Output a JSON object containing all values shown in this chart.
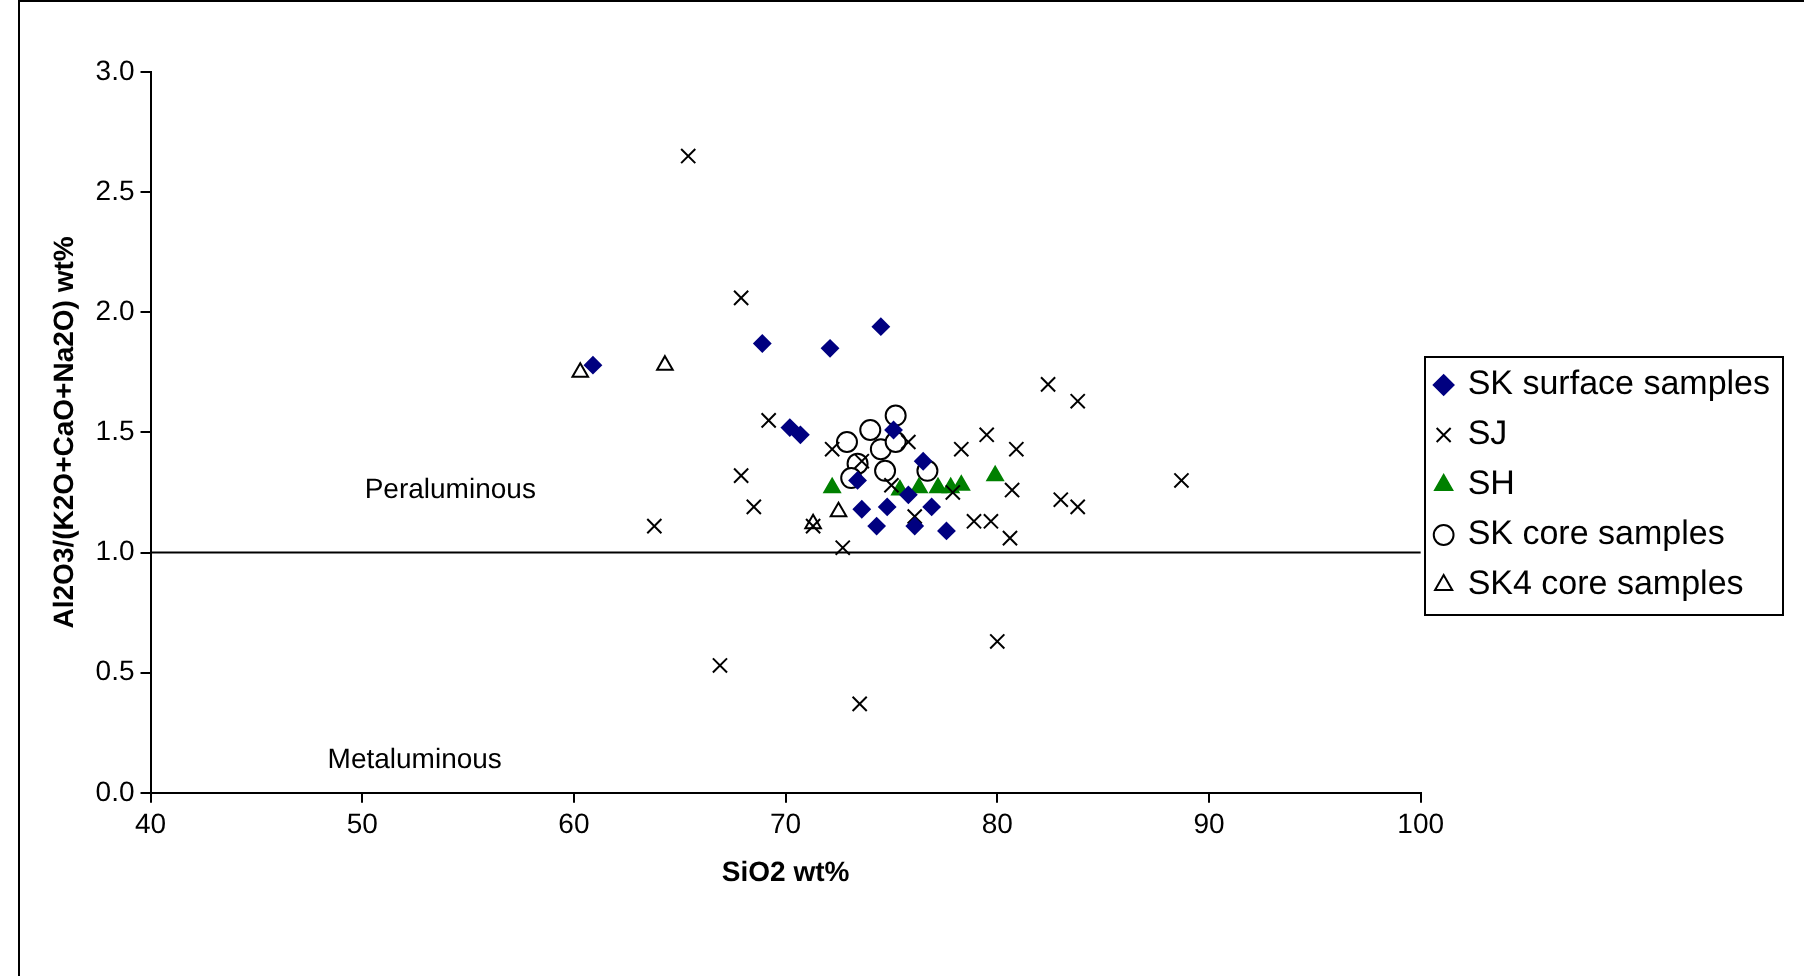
{
  "chart_data": {
    "type": "scatter",
    "xlabel": "SiO2 wt%",
    "ylabel": "Al2O3/(K2O+CaO+Na2O) wt%",
    "xlim": [
      40,
      100
    ],
    "xticks": [
      40,
      50,
      60,
      70,
      80,
      90,
      100
    ],
    "ylim": [
      0,
      3
    ],
    "yticks": [
      {
        "value": 0,
        "label": "0.0"
      },
      {
        "value": 0.5,
        "label": "0.5"
      },
      {
        "value": 1,
        "label": "1.0"
      },
      {
        "value": 1.5,
        "label": "1.5"
      },
      {
        "value": 2,
        "label": "2.0"
      },
      {
        "value": 2.5,
        "label": "2.5"
      },
      {
        "value": 3,
        "label": "3.0"
      }
    ],
    "grid": false,
    "legend": "right",
    "ref_lines": [
      {
        "axis": "y",
        "value": 1,
        "color": "#000000"
      }
    ],
    "annotations": [
      "Peraluminous",
      "Metaluminous"
    ],
    "series": [
      {
        "name": "SK surface samples",
        "color": "#000080",
        "marker": "diamond",
        "x": [
          60.9,
          68.9,
          72.1,
          74.5,
          70.2,
          70.7,
          73.4,
          73.6,
          74.3,
          74.8,
          75.1,
          76.1,
          77.6,
          76.5,
          76.9,
          75.8
        ],
        "values": [
          1.78,
          1.87,
          1.85,
          1.94,
          1.52,
          1.49,
          1.3,
          1.18,
          1.11,
          1.19,
          1.51,
          1.11,
          1.09,
          1.38,
          1.19,
          1.24
        ]
      },
      {
        "name": "SJ",
        "color": "#000000",
        "marker": "cross",
        "x": [
          65.4,
          67.9,
          69.2,
          67.9,
          68.5,
          63.8,
          72.7,
          66.9,
          73.5,
          80.0,
          82.4,
          83.8,
          88.7,
          83.0,
          83.8,
          80.6,
          80.7,
          79.5,
          80.9,
          78.3,
          78.9,
          79.7,
          72.2,
          75.8,
          76.1,
          71.3,
          77.9,
          75.0,
          73.6
        ],
        "values": [
          2.65,
          2.06,
          1.55,
          1.32,
          1.19,
          1.11,
          1.02,
          0.53,
          0.37,
          0.63,
          1.7,
          1.63,
          1.3,
          1.22,
          1.19,
          1.06,
          1.26,
          1.49,
          1.43,
          1.43,
          1.13,
          1.13,
          1.43,
          1.46,
          1.15,
          1.11,
          1.25,
          1.28,
          1.38
        ]
      },
      {
        "name": "SH",
        "color": "#008000",
        "marker": "triangle",
        "x": [
          72.2,
          75.4,
          76.3,
          77.2,
          78.3,
          79.9,
          77.8
        ],
        "values": [
          1.27,
          1.26,
          1.27,
          1.27,
          1.28,
          1.32,
          1.27
        ]
      },
      {
        "name": "SK core samples",
        "color": "#000000",
        "marker": "circle",
        "x": [
          75.2,
          74.0,
          72.9,
          74.5,
          73.4,
          74.7,
          75.2,
          73.1,
          76.7
        ],
        "values": [
          1.57,
          1.51,
          1.46,
          1.43,
          1.37,
          1.34,
          1.46,
          1.31,
          1.34
        ]
      },
      {
        "name": "SK4 core samples",
        "color": "#000000",
        "marker": "triangle",
        "x": [
          60.3,
          64.3,
          71.3,
          72.5
        ],
        "values": [
          1.75,
          1.78,
          1.12,
          1.17
        ]
      }
    ]
  }
}
